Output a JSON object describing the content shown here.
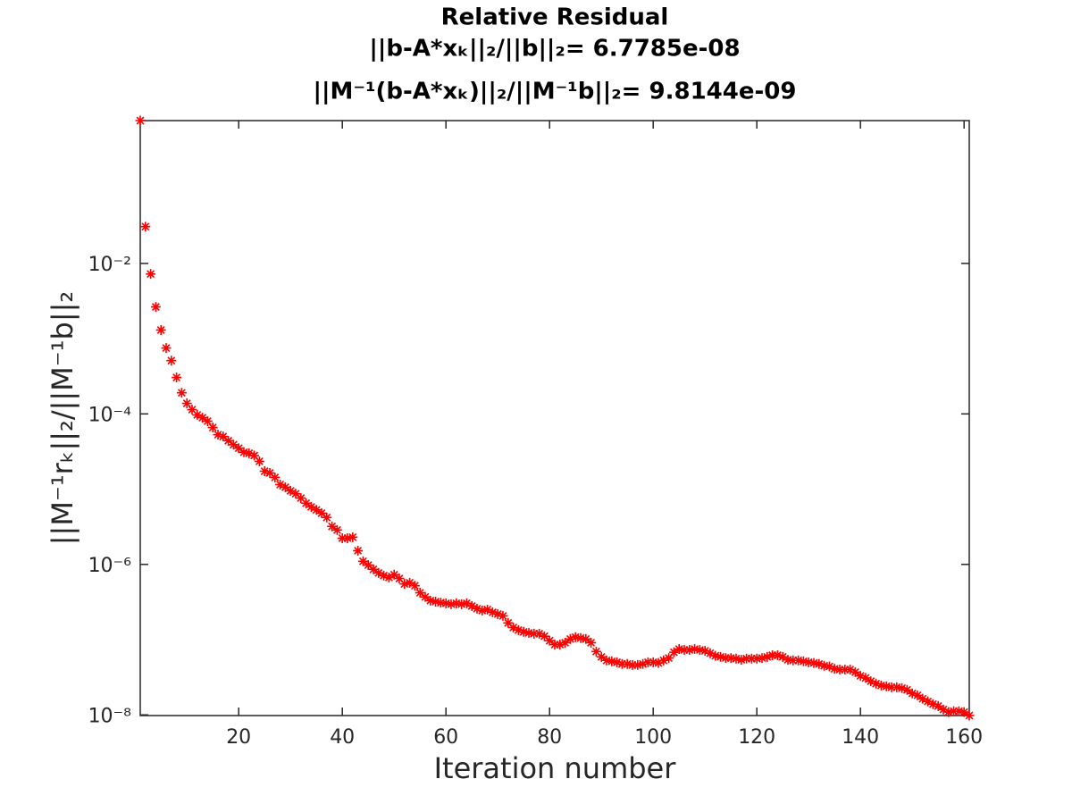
{
  "chart_data": {
    "type": "scatter",
    "title": "Relative Residual",
    "subtitle": [
      "||b-A*xₖ||₂/||b||₂= 6.7785e-08",
      "||M⁻¹(b-A*xₖ)||₂/||M⁻¹b||₂= 9.8144e-09"
    ],
    "x_label": "Iteration number",
    "y_label": "||M⁻¹rₖ||₂/||M⁻¹b||₂",
    "y_scale": "log",
    "grid": false,
    "marker": "asterisk",
    "color": "#ff0000",
    "xlim": [
      1,
      161
    ],
    "xticks": [
      20,
      40,
      60,
      80,
      100,
      120,
      140,
      160
    ],
    "ylim": [
      9.8e-09,
      0.79
    ],
    "yticks": [
      {
        "value": 1e-08,
        "label": "10⁻⁸"
      },
      {
        "value": 1e-06,
        "label": "10⁻⁶"
      },
      {
        "value": 0.0001,
        "label": "10⁻⁴"
      },
      {
        "value": 0.01,
        "label": "10⁻²"
      }
    ],
    "x": [
      1,
      2,
      3,
      4,
      5,
      6,
      7,
      8,
      9,
      10,
      11,
      12,
      13,
      14,
      15,
      16,
      17,
      18,
      19,
      20,
      21,
      22,
      23,
      24,
      25,
      26,
      27,
      28,
      29,
      30,
      31,
      32,
      33,
      34,
      35,
      36,
      37,
      38,
      39,
      40,
      41,
      42,
      43,
      44,
      45,
      46,
      47,
      48,
      49,
      50,
      51,
      52,
      53,
      54,
      55,
      56,
      57,
      58,
      59,
      60,
      61,
      62,
      63,
      64,
      65,
      66,
      67,
      68,
      69,
      70,
      71,
      72,
      73,
      74,
      75,
      76,
      77,
      78,
      79,
      80,
      81,
      82,
      83,
      84,
      85,
      86,
      87,
      88,
      89,
      90,
      91,
      92,
      93,
      94,
      95,
      96,
      97,
      98,
      99,
      100,
      101,
      102,
      103,
      104,
      105,
      106,
      107,
      108,
      109,
      110,
      111,
      112,
      113,
      114,
      115,
      116,
      117,
      118,
      119,
      120,
      121,
      122,
      123,
      124,
      125,
      126,
      127,
      128,
      129,
      130,
      131,
      132,
      133,
      134,
      135,
      136,
      137,
      138,
      139,
      140,
      141,
      142,
      143,
      144,
      145,
      146,
      147,
      148,
      149,
      150,
      151,
      152,
      153,
      154,
      155,
      156,
      157,
      158,
      159,
      160,
      161
    ],
    "values": [
      0.79,
      0.0308,
      0.00724,
      0.00264,
      0.0013,
      0.00075,
      0.00051,
      0.000305,
      0.000191,
      0.000138,
      0.000114,
      9.7e-05,
      8.9e-05,
      8e-05,
      6.6e-05,
      5.3e-05,
      5e-05,
      4.4e-05,
      3.9e-05,
      3.5e-05,
      3.1e-05,
      3e-05,
      2.8e-05,
      2.34e-05,
      1.73e-05,
      1.64e-05,
      1.43e-05,
      1.15e-05,
      1.06e-05,
      9.5e-06,
      8.7e-06,
      7.6e-06,
      6.5e-06,
      5.8e-06,
      5.3e-06,
      4.8e-06,
      4.2e-06,
      3.2e-06,
      2.86e-06,
      2.23e-06,
      2.23e-06,
      2.3e-06,
      1.52e-06,
      1.1e-06,
      9.8e-07,
      8.6e-07,
      7.7e-07,
      7.1e-07,
      6.7e-07,
      7.3e-07,
      6.5e-07,
      5.5e-07,
      5.7e-07,
      5.2e-07,
      4.2e-07,
      3.7e-07,
      3.3e-07,
      3.2e-07,
      3.1e-07,
      3.04e-07,
      2.96e-07,
      3.04e-07,
      2.96e-07,
      3.04e-07,
      2.8e-07,
      2.58e-07,
      2.44e-07,
      2.51e-07,
      2.31e-07,
      2.19e-07,
      2.07e-07,
      1.67e-07,
      1.45e-07,
      1.34e-07,
      1.27e-07,
      1.23e-07,
      1.2e-07,
      1.2e-07,
      1.11e-07,
      9.7e-08,
      8.6e-08,
      8.6e-08,
      9.1e-08,
      1.02e-07,
      1.08e-07,
      1.05e-07,
      1.02e-07,
      9.1e-08,
      6.95e-08,
      5.9e-08,
      5.3e-08,
      5.15e-08,
      5e-08,
      4.75e-08,
      4.75e-08,
      4.6e-08,
      4.6e-08,
      4.75e-08,
      5e-08,
      5e-08,
      4.9e-08,
      5.3e-08,
      5.7e-08,
      6.8e-08,
      7.5e-08,
      7.3e-08,
      7.3e-08,
      7.5e-08,
      7.3e-08,
      7.1e-08,
      6.6e-08,
      6.1e-08,
      5.9e-08,
      5.7e-08,
      5.7e-08,
      5.6e-08,
      5.4e-08,
      5.6e-08,
      5.6e-08,
      5.6e-08,
      5.7e-08,
      5.9e-08,
      6.2e-08,
      6.2e-08,
      5.9e-08,
      5.4e-08,
      5.3e-08,
      5.3e-08,
      5.15e-08,
      5e-08,
      4.9e-08,
      4.75e-08,
      4.5e-08,
      4.4e-08,
      4.1e-08,
      4e-08,
      4e-08,
      4e-08,
      3.7e-08,
      3.3e-08,
      3.1e-08,
      2.8e-08,
      2.6e-08,
      2.46e-08,
      2.4e-08,
      2.33e-08,
      2.33e-08,
      2.27e-08,
      2.15e-08,
      1.93e-08,
      1.82e-08,
      1.64e-08,
      1.51e-08,
      1.39e-08,
      1.31e-08,
      1.18e-08,
      1.09e-08,
      1.12e-08,
      1.12e-08,
      1.09e-08,
      9.8144e-09
    ]
  }
}
